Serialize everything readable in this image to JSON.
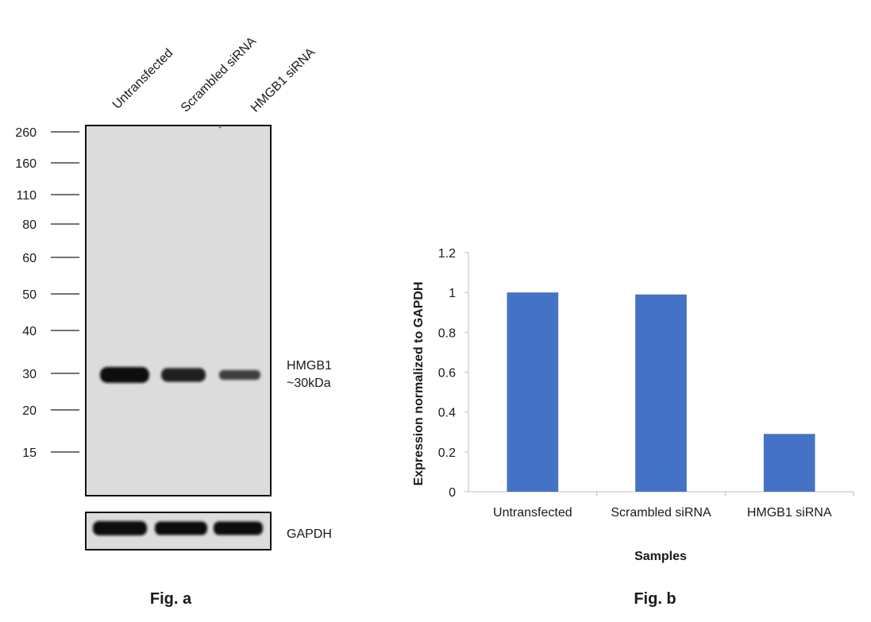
{
  "figure_a": {
    "caption": "Fig. a",
    "lanes": [
      "Untransfected",
      "Scrambled siRNA",
      "HMGB1 siRNA"
    ],
    "markers": [
      "260",
      "160",
      "110",
      "80",
      "60",
      "50",
      "40",
      "30",
      "20",
      "15"
    ],
    "band_label_line1": "HMGB1",
    "band_label_line2": "~30kDa",
    "control_label": "GAPDH",
    "membrane_color": "#dcdcdc",
    "band_color": "#111111",
    "hmgb1_band_intensity": [
      1.0,
      0.8,
      0.45
    ],
    "gapdh_band_intensity": [
      1.0,
      0.95,
      0.95
    ]
  },
  "figure_b": {
    "caption": "Fig. b"
  },
  "chart_data": {
    "type": "bar",
    "categories": [
      "Untransfected",
      "Scrambled siRNA",
      "HMGB1 siRNA"
    ],
    "values": [
      1.0,
      0.99,
      0.29
    ],
    "xlabel": "Samples",
    "ylabel": "Expression normalized to GAPDH",
    "ylim": [
      0,
      1.2
    ],
    "yticks": [
      "0",
      "0.2",
      "0.4",
      "0.6",
      "0.8",
      "1",
      "1.2"
    ],
    "bar_color": "#4472c4",
    "grid": false,
    "legend": "none"
  }
}
